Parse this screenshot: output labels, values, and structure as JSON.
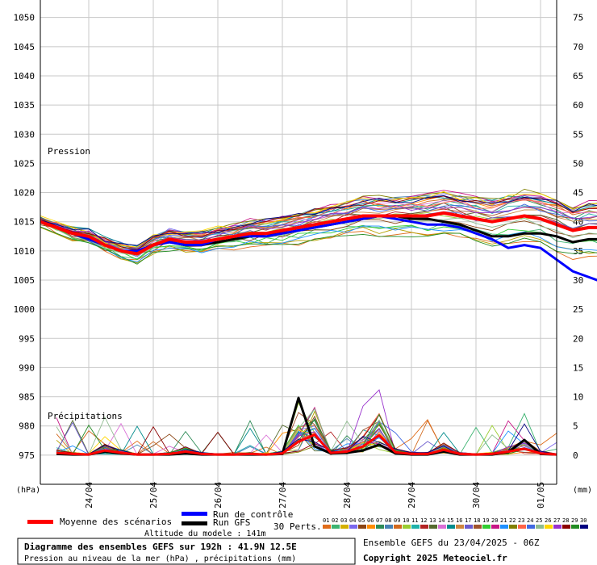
{
  "chart_data": {
    "type": "line",
    "title": "Diagramme des ensembles GEFS sur 192h : 41.9N 12.5E",
    "subtitle": "Pression au niveau de la mer (hPa) , précipitations (mm)",
    "altitude_label": "Altitude du modele : 141m",
    "run_label": "Ensemble GEFS du 23/04/2025 - 06Z",
    "copyright": "Copyright 2025 Meteociel.fr",
    "left_axis_unit": "(hPa)",
    "right_axis_unit": "(mm)",
    "pressure_label": "Pression",
    "precip_label": "Précipitations",
    "ylim_pressure": [
      970,
      1053
    ],
    "yticks_pressure": [
      975,
      980,
      985,
      990,
      995,
      1000,
      1005,
      1010,
      1015,
      1020,
      1025,
      1030,
      1035,
      1040,
      1045,
      1050
    ],
    "yticks_mm": [
      0,
      5,
      10,
      15,
      20,
      25,
      30,
      35,
      40,
      45,
      50,
      55,
      60,
      65,
      70,
      75
    ],
    "grid": true,
    "x_hours_per_step": 6,
    "x_start_hour": 0,
    "x_end_hour": 192,
    "date_ticks": [
      {
        "label": "24/04",
        "hour": 18
      },
      {
        "label": "25/04",
        "hour": 42
      },
      {
        "label": "26/04",
        "hour": 66
      },
      {
        "label": "27/04",
        "hour": 90
      },
      {
        "label": "28/04",
        "hour": 114
      },
      {
        "label": "29/04",
        "hour": 138
      },
      {
        "label": "30/04",
        "hour": 162
      },
      {
        "label": "01/05",
        "hour": 186
      }
    ],
    "series": [
      {
        "name": "Moyenne des scénarios",
        "color": "#ff0000",
        "values": [
          1015,
          1014,
          1013,
          1012.5,
          1011,
          1010,
          1009.5,
          1011,
          1012,
          1011.5,
          1011.5,
          1012,
          1012.5,
          1013,
          1013,
          1013.5,
          1014,
          1014.5,
          1015,
          1015.5,
          1016,
          1016,
          1016,
          1016,
          1016,
          1016.5,
          1016,
          1015.5,
          1015,
          1015.5,
          1016,
          1015.5,
          1014.5,
          1013.5,
          1014,
          1014,
          1013.5
        ]
      },
      {
        "name": "Run de contrôle",
        "color": "#0000ff",
        "values": [
          1015,
          1014,
          1013,
          1012,
          1011,
          1010,
          1010,
          1011,
          1011.5,
          1011,
          1011,
          1012,
          1012.5,
          1012.5,
          1012.5,
          1013,
          1013.5,
          1014,
          1014.5,
          1015,
          1015.5,
          1016,
          1015.5,
          1015,
          1014.5,
          1014.5,
          1014,
          1013,
          1012,
          1010.5,
          1011,
          1010.5,
          1008.5,
          1006.5,
          1005.5,
          1004.5,
          1002
        ]
      },
      {
        "name": "Run GFS",
        "color": "#000000",
        "values": [
          1015,
          1014,
          1013,
          1012,
          1011,
          1010,
          1009.8,
          1011,
          1011.5,
          1011,
          1011,
          1011.5,
          1012,
          1012.5,
          1013,
          1013,
          1013.5,
          1014,
          1014.5,
          1015,
          1015.5,
          1016,
          1016,
          1015.5,
          1015.5,
          1015,
          1014.5,
          1013.5,
          1012.5,
          1012.5,
          1013,
          1013,
          1012.5,
          1011.5,
          1012,
          1012,
          1011.5
        ]
      }
    ],
    "precip_series": [
      {
        "name": "Moyenne des scénarios",
        "color": "#ff0000",
        "hours": [
          6,
          12,
          18,
          24,
          30,
          36,
          42,
          48,
          54,
          60,
          66,
          72,
          78,
          84,
          90,
          96,
          102,
          108,
          114,
          120,
          126,
          132,
          138,
          144,
          150,
          156,
          162,
          168,
          174,
          180,
          186,
          192
        ],
        "values": [
          0.4,
          0.2,
          0.1,
          0.8,
          0.4,
          0.1,
          0.1,
          0.2,
          0.6,
          0.2,
          0.1,
          0.1,
          0.2,
          0.1,
          0.3,
          2.3,
          3.5,
          0.4,
          0.6,
          1.5,
          3.4,
          0.5,
          0.2,
          0.2,
          0.9,
          0.2,
          0.1,
          0.2,
          0.6,
          1.1,
          0.3,
          0.1
        ]
      },
      {
        "name": "Run GFS",
        "color": "#000000",
        "hours": [
          6,
          12,
          18,
          24,
          30,
          36,
          42,
          48,
          54,
          60,
          66,
          72,
          78,
          84,
          90,
          96,
          102,
          108,
          114,
          120,
          126,
          132,
          138,
          144,
          150,
          156,
          162,
          168,
          174,
          180,
          186,
          192
        ],
        "values": [
          0.2,
          0.1,
          0.1,
          0.6,
          0.3,
          0.1,
          0.1,
          0.1,
          0.3,
          0.1,
          0.1,
          0.1,
          0.1,
          0.1,
          0.2,
          9.8,
          1.5,
          0.3,
          0.4,
          0.8,
          1.8,
          0.3,
          0.1,
          0.1,
          0.6,
          0.1,
          0.1,
          0.1,
          0.5,
          2.6,
          0.2,
          0.1
        ]
      }
    ],
    "ensemble_colors": [
      "#e06c1a",
      "#3cb371",
      "#b5a000",
      "#7b68ee",
      "#8b4513",
      "#ff8c00",
      "#2e8b57",
      "#4682b4",
      "#d2691e",
      "#9acd32",
      "#20b2aa",
      "#b22222",
      "#556b2f",
      "#da70d6",
      "#008b8b",
      "#cd853f",
      "#6a5acd",
      "#a0522d",
      "#32cd32",
      "#c71585",
      "#1e90ff",
      "#808000",
      "#ff6347",
      "#4169e1",
      "#8fbc8f",
      "#ffd700",
      "#9932cc",
      "#8b0000",
      "#228b22",
      "#000080"
    ],
    "perts_label": "30 Perts.",
    "perts_numbers": [
      "01",
      "02",
      "03",
      "04",
      "05",
      "06",
      "07",
      "08",
      "09",
      "10",
      "11",
      "12",
      "13",
      "14",
      "15",
      "16",
      "17",
      "18",
      "19",
      "20",
      "21",
      "22",
      "23",
      "24",
      "25",
      "26",
      "27",
      "28",
      "29",
      "30"
    ],
    "perts_colors": [
      "#e06c1a",
      "#3cb371",
      "#d4b000",
      "#7b68ee",
      "#8b4513",
      "#ff8c00",
      "#2e8b57",
      "#4682b4",
      "#d2691e",
      "#9acd32",
      "#20b2aa",
      "#b22222",
      "#556b2f",
      "#da70d6",
      "#008b8b",
      "#cd853f",
      "#6a5acd",
      "#a0522d",
      "#32cd32",
      "#c71585",
      "#1e90ff",
      "#808000",
      "#ff6347",
      "#4169e1",
      "#8fbc8f",
      "#ffd700",
      "#9932cc",
      "#8b0000",
      "#228b22",
      "#000080"
    ]
  }
}
